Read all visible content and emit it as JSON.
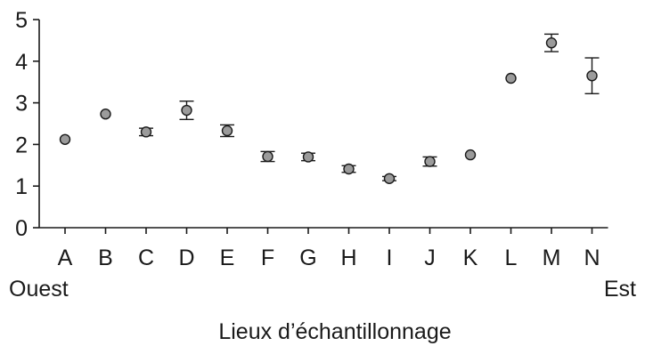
{
  "chart_data": {
    "type": "scatter",
    "title": "",
    "xlabel": "Lieux d’échantillonnage",
    "ylabel": "",
    "ylim": [
      0,
      5
    ],
    "yticks": [
      "0",
      "1",
      "2",
      "3",
      "4",
      "5"
    ],
    "categories": [
      "A",
      "B",
      "C",
      "D",
      "E",
      "F",
      "G",
      "H",
      "I",
      "J",
      "K",
      "L",
      "M",
      "N"
    ],
    "x_start_label": "Ouest",
    "x_end_label": "Est",
    "grid": false,
    "series": [
      {
        "values": [
          2.12,
          2.73,
          2.3,
          2.82,
          2.33,
          1.71,
          1.7,
          1.41,
          1.18,
          1.59,
          1.75,
          3.59,
          4.44,
          3.65
        ],
        "error": [
          0,
          0,
          0.09,
          0.22,
          0.14,
          0.12,
          0.09,
          0.08,
          0.05,
          0.11,
          0,
          0,
          0.21,
          0.43
        ]
      }
    ],
    "point_color": "#9b9b9b"
  }
}
